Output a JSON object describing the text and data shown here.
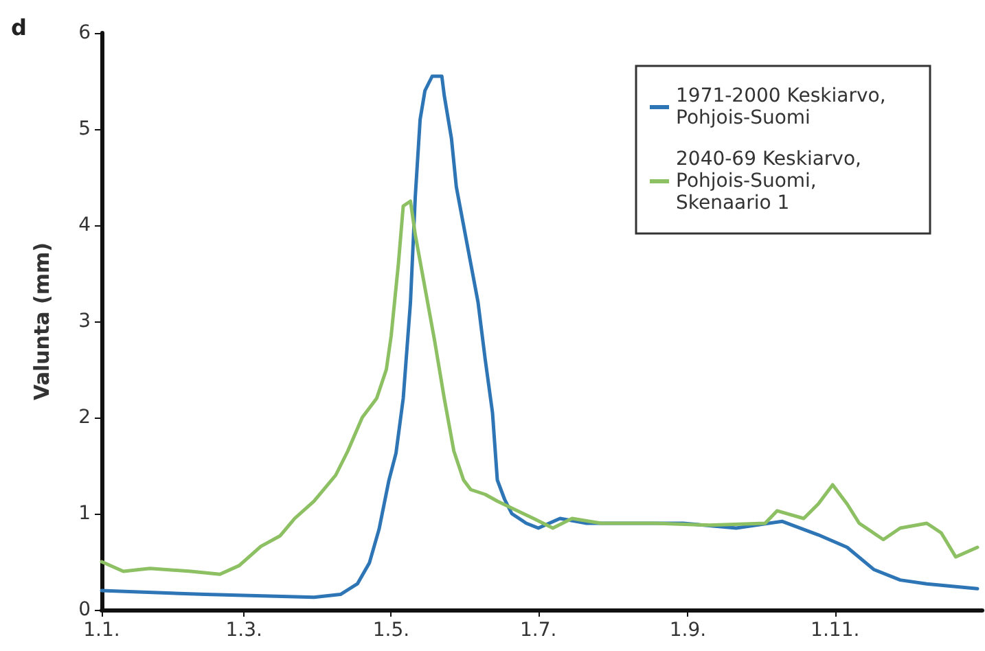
{
  "chart_data": {
    "type": "line",
    "annotations": [
      "d"
    ],
    "ylabel": "Valunta (mm)",
    "xlim": [
      "--01-01",
      "--12-31"
    ],
    "ylim": [
      0,
      6
    ],
    "yticks": [
      0,
      1,
      2,
      3,
      4,
      5,
      6
    ],
    "xticks": [
      {
        "value": "--01-01",
        "label": "1.1."
      },
      {
        "value": "--03-01",
        "label": "1.3."
      },
      {
        "value": "--05-01",
        "label": "1.5."
      },
      {
        "value": "--07-01",
        "label": "1.7."
      },
      {
        "value": "--09-01",
        "label": "1.9."
      },
      {
        "value": "--11-01",
        "label": "1.11."
      }
    ],
    "grid": false,
    "legend": "top right",
    "marker": "none",
    "line_style": "solid",
    "series": [
      {
        "name": "1971-2000 Keskiarvo, Pohjois-Suomi",
        "color": "#2e75b6",
        "x": [
          "--01-01",
          "--02-13",
          "--03-30",
          "--04-10",
          "--04-17",
          "--04-22",
          "--04-26",
          "--04-30",
          "--05-03",
          "--05-06",
          "--05-09",
          "--05-11",
          "--05-13",
          "--05-15",
          "--05-18",
          "--05-22",
          "--05-23",
          "--05-26",
          "--05-28",
          "--05-31",
          "--06-03",
          "--06-06",
          "--06-09",
          "--06-12",
          "--06-14",
          "--06-17",
          "--06-20",
          "--06-26",
          "--07-01",
          "--07-10",
          "--07-21",
          "--08-07",
          "--08-30",
          "--09-21",
          "--10-10",
          "--10-25",
          "--11-06",
          "--11-17",
          "--11-28",
          "--12-09",
          "--12-30"
        ],
        "values": [
          0.2,
          0.16,
          0.13,
          0.16,
          0.27,
          0.49,
          0.84,
          1.34,
          1.63,
          2.2,
          3.2,
          4.3,
          5.1,
          5.4,
          5.55,
          5.55,
          5.35,
          4.9,
          4.4,
          4.0,
          3.6,
          3.2,
          2.6,
          2.05,
          1.35,
          1.15,
          1.0,
          0.9,
          0.85,
          0.95,
          0.9,
          0.9,
          0.9,
          0.85,
          0.92,
          0.78,
          0.65,
          0.42,
          0.31,
          0.27,
          0.22
        ]
      },
      {
        "name": "2040-69 Keskiarvo, Pohjois-Suomi, Skenaario 1",
        "color": "#8dc063",
        "x": [
          "--01-01",
          "--01-10",
          "--01-21",
          "--02-07",
          "--02-19",
          "--02-27",
          "--03-08",
          "--03-16",
          "--03-22",
          "--03-30",
          "--04-08",
          "--04-13",
          "--04-19",
          "--04-25",
          "--04-29",
          "--05-01",
          "--05-04",
          "--05-06",
          "--05-09",
          "--05-11",
          "--05-15",
          "--05-19",
          "--05-23",
          "--05-27",
          "--05-31",
          "--06-03",
          "--06-09",
          "--06-14",
          "--06-29",
          "--07-07",
          "--07-15",
          "--07-27",
          "--08-18",
          "--09-10",
          "--10-03",
          "--10-08",
          "--10-19",
          "--10-25",
          "--10-31",
          "--11-06",
          "--11-11",
          "--11-21",
          "--11-28",
          "--12-09",
          "--12-15",
          "--12-21",
          "--12-30"
        ],
        "values": [
          0.5,
          0.4,
          0.43,
          0.4,
          0.37,
          0.46,
          0.66,
          0.77,
          0.95,
          1.13,
          1.4,
          1.65,
          2.0,
          2.2,
          2.5,
          2.85,
          3.6,
          4.2,
          4.25,
          3.9,
          3.35,
          2.8,
          2.2,
          1.65,
          1.35,
          1.25,
          1.2,
          1.13,
          0.95,
          0.85,
          0.95,
          0.9,
          0.9,
          0.88,
          0.9,
          1.03,
          0.95,
          1.1,
          1.3,
          1.1,
          0.9,
          0.73,
          0.85,
          0.9,
          0.8,
          0.55,
          0.65
        ]
      }
    ]
  }
}
